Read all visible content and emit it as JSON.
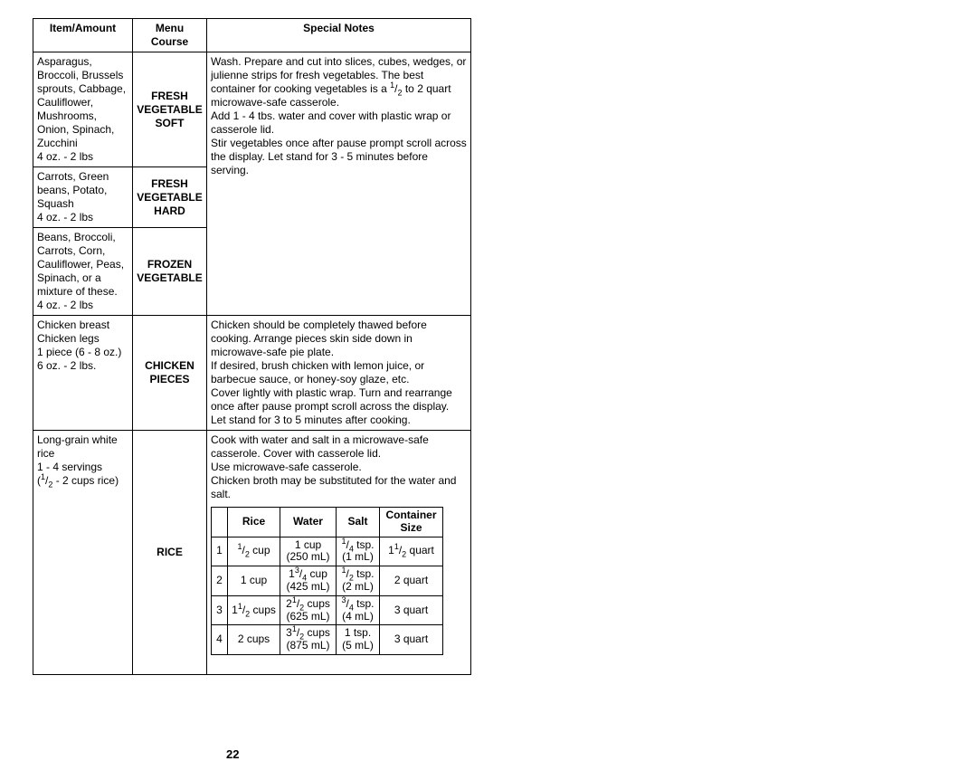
{
  "headers": {
    "item": "Item/Amount",
    "course": "Menu Course",
    "notes": "Special Notes"
  },
  "rows": {
    "r1": {
      "item": "Asparagus, Broccoli, Brussels sprouts, Cabbage, Cauliflower, Mushrooms, Onion, Spinach, Zucchini\n4 oz. - 2 lbs",
      "course": "FRESH VEGETABLE SOFT"
    },
    "r2": {
      "item": "Carrots, Green beans, Potato, Squash\n4 oz. - 2 lbs",
      "course": "FRESH VEGETABLE HARD"
    },
    "r3": {
      "item": "Beans, Broccoli, Carrots, Corn, Cauliflower, Peas, Spinach, or a mixture of these.\n4 oz. - 2 lbs",
      "course": "FROZEN VEGETABLE"
    },
    "r4": {
      "item": "Chicken breast\nChicken legs\n1 piece (6 - 8 oz.)\n6 oz. - 2 lbs.",
      "course": "CHICKEN PIECES",
      "notes": "Chicken should be completely thawed before cooking. Arrange pieces skin side down in microwave-safe pie plate.\nIf desired, brush chicken with lemon juice, or barbecue sauce, or honey-soy glaze, etc.\nCover lightly with plastic wrap. Turn and rearrange once after pause prompt scroll across the display. Let stand for 3 to 5 minutes after cooking."
    },
    "r5": {
      "course": "RICE",
      "notes_intro": "Cook with water and salt in a microwave-safe casserole. Cover with casserole lid.\nUse microwave-safe casserole.\nChicken broth may be substituted for the water and salt."
    }
  },
  "veg_notes": {
    "p1": "Wash. Prepare and cut into slices, cubes, wedges, or julienne strips for fresh vegetables. The best container for cooking vegetables is a",
    "p2": " to 2 quart microwave-safe casserole.",
    "p3": "Add 1 - 4 tbs. water and cover with plastic wrap or casserole lid.",
    "p4": "Stir vegetables once after pause prompt scroll across the display. Let stand for 3 - 5 minutes before serving."
  },
  "rice_item": {
    "l1": "Long-grain white rice",
    "l2": "1 - 4 servings",
    "l3_suffix": " - 2 cups rice)"
  },
  "inner": {
    "headers": {
      "c1": "Rice",
      "c2": "Water",
      "c3": "Salt",
      "c4": "Container Size"
    },
    "rows": [
      {
        "n": "1",
        "rice_frac": [
          "1",
          "2",
          " cup"
        ],
        "water": "1 cup",
        "water2": "(250 mL)",
        "salt_frac": [
          "1",
          "4",
          " tsp."
        ],
        "salt2": "(1 mL)",
        "cont_frac": [
          "1",
          "1",
          "2",
          " quart"
        ]
      },
      {
        "n": "2",
        "rice": "1 cup",
        "water_frac": [
          "1",
          "3",
          "4",
          " cup"
        ],
        "water2": "(425 mL)",
        "salt_frac": [
          "1",
          "2",
          " tsp."
        ],
        "salt2": "(2 mL)",
        "cont": "2 quart"
      },
      {
        "n": "3",
        "rice_frac2": [
          "1",
          "1",
          "2",
          " cups"
        ],
        "water_frac2": [
          "2",
          "1",
          "2",
          " cups"
        ],
        "water2": "(625 mL)",
        "salt_frac": [
          "3",
          "4",
          " tsp."
        ],
        "salt2": "(4 mL)",
        "cont": "3 quart"
      },
      {
        "n": "4",
        "rice": "2 cups",
        "water_frac2": [
          "3",
          "1",
          "2",
          " cups"
        ],
        "water2": "(875 mL)",
        "salt": "1 tsp.",
        "salt2": "(5 mL)",
        "cont": "3 quart"
      }
    ]
  },
  "page_number": "22"
}
